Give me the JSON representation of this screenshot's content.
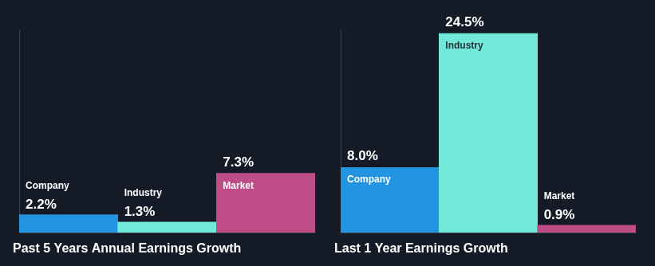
{
  "chart_data": [
    {
      "type": "bar",
      "title": "Past 5 Years Annual Earnings Growth",
      "categories": [
        "Company",
        "Industry",
        "Market"
      ],
      "values": [
        2.2,
        1.3,
        7.3
      ],
      "value_labels": [
        "2.2%",
        "1.3%",
        "7.3%"
      ],
      "colors": [
        "#2394df",
        "#71e8d8",
        "#bd4c87"
      ],
      "ylim": [
        0,
        25
      ],
      "data_labels": true,
      "tick_labels": false,
      "grid": false
    },
    {
      "type": "bar",
      "title": "Last 1 Year Earnings Growth",
      "categories": [
        "Company",
        "Industry",
        "Market"
      ],
      "values": [
        8.0,
        24.5,
        0.9
      ],
      "value_labels": [
        "8.0%",
        "24.5%",
        "0.9%"
      ],
      "colors": [
        "#2394df",
        "#71e8d8",
        "#bd4c87"
      ],
      "ylim": [
        0,
        25
      ],
      "data_labels": true,
      "tick_labels": false,
      "grid": false
    }
  ]
}
